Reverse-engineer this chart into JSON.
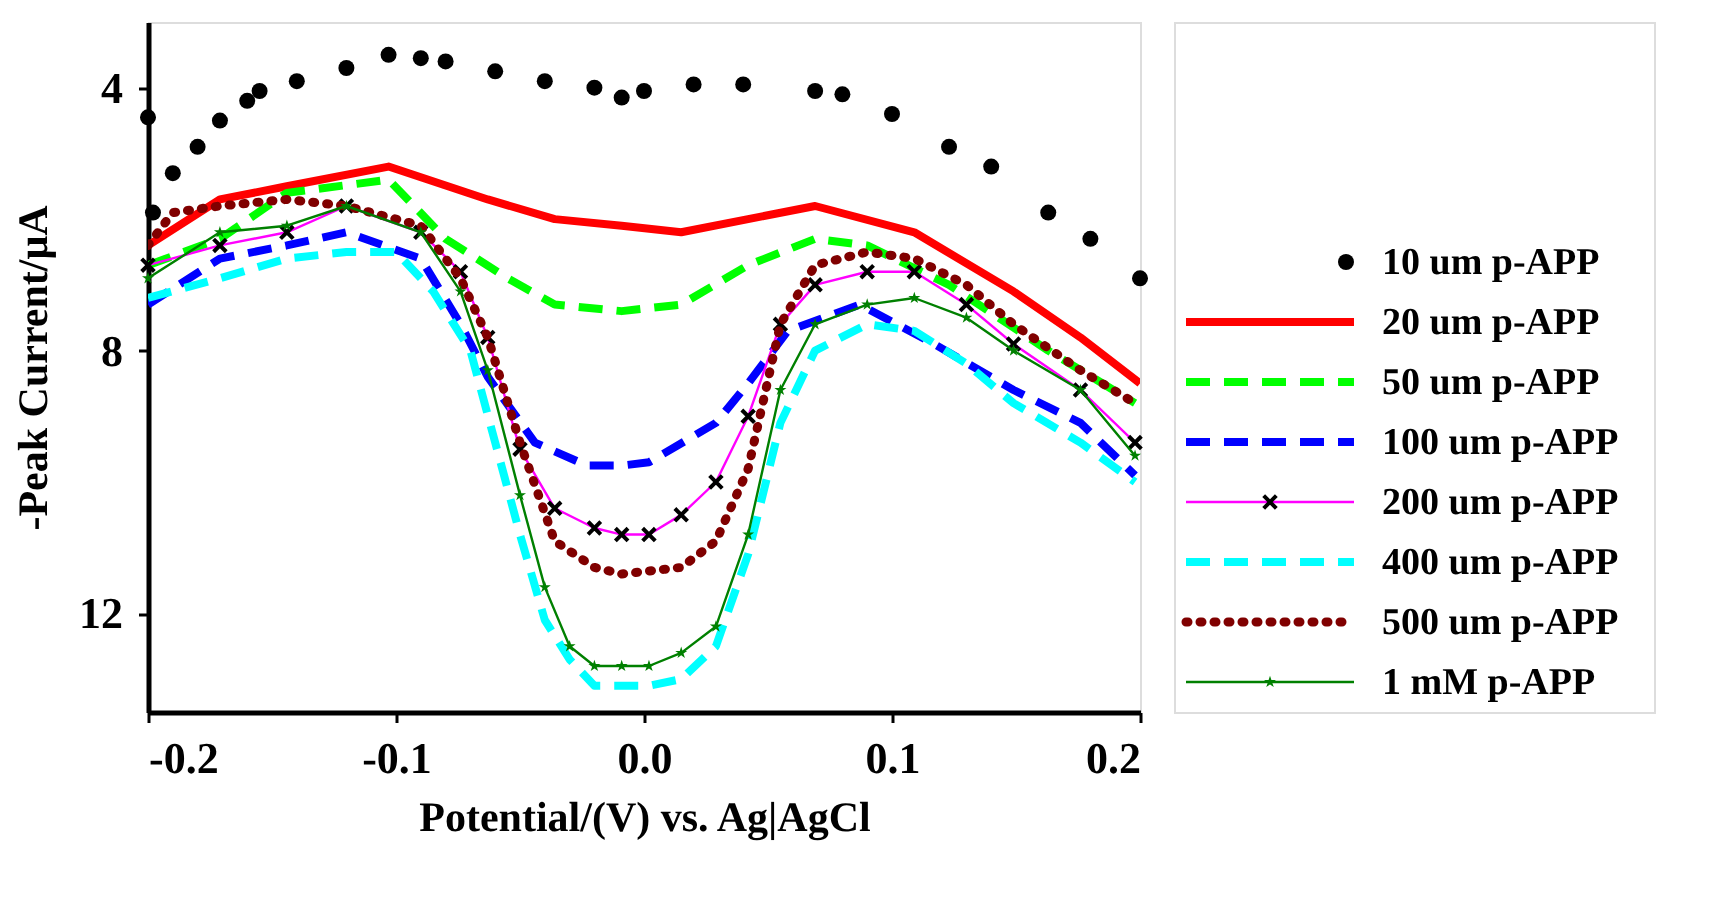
{
  "chart_data": {
    "type": "line",
    "xlabel": "Potential/(V) vs. Ag|AgCl",
    "ylabel": "-Peak Current/μA",
    "xlim": [
      -0.2,
      0.2
    ],
    "xticks": [
      -0.2,
      -0.1,
      {
        "value": 0,
        "label": "0.0"
      },
      0.1,
      0.2
    ],
    "ylim": [
      13.5,
      3
    ],
    "yticks": [
      4,
      8,
      12
    ],
    "grid": false,
    "legend": "right",
    "series": [
      {
        "name": "10 um p-APP",
        "type": "scatter",
        "marker": "circle",
        "color": "#000000",
        "x": [
          -0.2,
          -0.198,
          -0.19,
          -0.18,
          -0.171,
          -0.16,
          -0.155,
          -0.14,
          -0.12,
          -0.103,
          -0.09,
          -0.08,
          -0.06,
          -0.04,
          -0.02,
          -0.009,
          0.0,
          0.02,
          0.04,
          0.069,
          0.08,
          0.1,
          0.123,
          0.14,
          0.163,
          0.18,
          0.2
        ],
        "values": [
          4.45,
          5.9,
          5.3,
          4.9,
          4.5,
          4.2,
          4.05,
          3.9,
          3.7,
          3.5,
          3.55,
          3.6,
          3.75,
          3.9,
          4.0,
          4.15,
          4.05,
          3.95,
          3.95,
          4.05,
          4.1,
          4.4,
          4.9,
          5.2,
          5.9,
          6.3,
          6.9
        ]
      },
      {
        "name": "20 um p-APP",
        "type": "line",
        "line_style": "solid",
        "color": "#ff0000",
        "x": [
          -0.2,
          -0.171,
          -0.144,
          -0.103,
          -0.063,
          -0.036,
          -0.009,
          0.015,
          0.069,
          0.109,
          0.149,
          0.176,
          0.2
        ],
        "values": [
          6.4,
          5.7,
          5.5,
          5.2,
          5.7,
          6.0,
          6.1,
          6.2,
          5.8,
          6.2,
          7.1,
          7.8,
          8.5
        ]
      },
      {
        "name": "50 um p-APP",
        "type": "line",
        "line_style": "dashed",
        "color": "#00ff00",
        "x": [
          -0.2,
          -0.171,
          -0.144,
          -0.103,
          -0.08,
          -0.055,
          -0.036,
          -0.009,
          0.015,
          0.042,
          0.069,
          0.09,
          0.123,
          0.163,
          0.198
        ],
        "values": [
          6.7,
          6.3,
          5.6,
          5.4,
          6.3,
          6.9,
          7.3,
          7.4,
          7.3,
          6.7,
          6.3,
          6.4,
          7.0,
          8.0,
          8.8
        ]
      },
      {
        "name": "100 um p-APP",
        "type": "line",
        "line_style": "dashed",
        "color": "#0000ff",
        "x": [
          -0.2,
          -0.171,
          -0.144,
          -0.12,
          -0.09,
          -0.074,
          -0.063,
          -0.044,
          -0.023,
          -0.009,
          0.002,
          0.029,
          0.042,
          0.058,
          0.087,
          0.117,
          0.149,
          0.176,
          0.198
        ],
        "values": [
          7.3,
          6.6,
          6.4,
          6.2,
          6.6,
          7.6,
          8.4,
          9.4,
          9.75,
          9.75,
          9.7,
          9.1,
          8.5,
          7.7,
          7.3,
          7.9,
          8.6,
          9.1,
          9.9
        ]
      },
      {
        "name": "200 um p-APP",
        "type": "line",
        "line_style": "solid",
        "marker": "cross",
        "color": "#ff00ff",
        "x": [
          -0.2,
          -0.171,
          -0.144,
          -0.12,
          -0.09,
          -0.074,
          -0.063,
          -0.05,
          -0.036,
          -0.02,
          -0.009,
          0.002,
          0.015,
          0.029,
          0.042,
          0.055,
          0.069,
          0.09,
          0.109,
          0.13,
          0.149,
          0.176,
          0.198
        ],
        "values": [
          6.7,
          6.4,
          6.2,
          5.8,
          6.2,
          6.8,
          7.8,
          9.5,
          10.4,
          10.7,
          10.8,
          10.8,
          10.5,
          10.0,
          9.0,
          7.6,
          7.0,
          6.8,
          6.8,
          7.3,
          7.9,
          8.6,
          9.4
        ]
      },
      {
        "name": "400 um p-APP",
        "type": "line",
        "line_style": "dashed",
        "color": "#00ffff",
        "x": [
          -0.2,
          -0.171,
          -0.144,
          -0.12,
          -0.1,
          -0.085,
          -0.07,
          -0.06,
          -0.05,
          -0.04,
          -0.03,
          -0.02,
          -0.009,
          0.002,
          0.015,
          0.029,
          0.042,
          0.055,
          0.069,
          0.09,
          0.109,
          0.13,
          0.149,
          0.176,
          0.198
        ],
        "values": [
          7.2,
          6.9,
          6.6,
          6.5,
          6.5,
          7.1,
          8.0,
          9.4,
          10.8,
          12.1,
          12.7,
          13.1,
          13.1,
          13.1,
          13.0,
          12.5,
          11.1,
          9.1,
          8.0,
          7.6,
          7.7,
          8.2,
          8.8,
          9.4,
          10.0
        ]
      },
      {
        "name": "500 um p-APP",
        "type": "line",
        "line_style": "dotted",
        "color": "#800000",
        "x": [
          -0.2,
          -0.19,
          -0.171,
          -0.144,
          -0.12,
          -0.09,
          -0.074,
          -0.063,
          -0.05,
          -0.036,
          -0.02,
          -0.009,
          0.015,
          0.029,
          0.042,
          0.055,
          0.069,
          0.09,
          0.109,
          0.13,
          0.149,
          0.176,
          0.198
        ],
        "values": [
          6.4,
          5.9,
          5.8,
          5.7,
          5.8,
          6.1,
          6.9,
          7.8,
          9.4,
          10.9,
          11.3,
          11.4,
          11.3,
          10.9,
          9.8,
          7.6,
          6.7,
          6.5,
          6.6,
          7.0,
          7.6,
          8.3,
          8.8
        ]
      },
      {
        "name": "1 mM p-APP",
        "type": "line",
        "line_style": "solid",
        "marker": "star",
        "color": "#008000",
        "x": [
          -0.2,
          -0.171,
          -0.144,
          -0.12,
          -0.09,
          -0.074,
          -0.063,
          -0.05,
          -0.04,
          -0.03,
          -0.02,
          -0.009,
          0.002,
          0.015,
          0.029,
          0.042,
          0.055,
          0.069,
          0.09,
          0.109,
          0.13,
          0.149,
          0.176,
          0.198
        ],
        "values": [
          6.9,
          6.2,
          6.1,
          5.8,
          6.2,
          7.1,
          8.3,
          10.2,
          11.6,
          12.5,
          12.8,
          12.8,
          12.8,
          12.6,
          12.2,
          10.8,
          8.6,
          7.6,
          7.3,
          7.2,
          7.5,
          8.0,
          8.6,
          9.6
        ]
      }
    ]
  }
}
